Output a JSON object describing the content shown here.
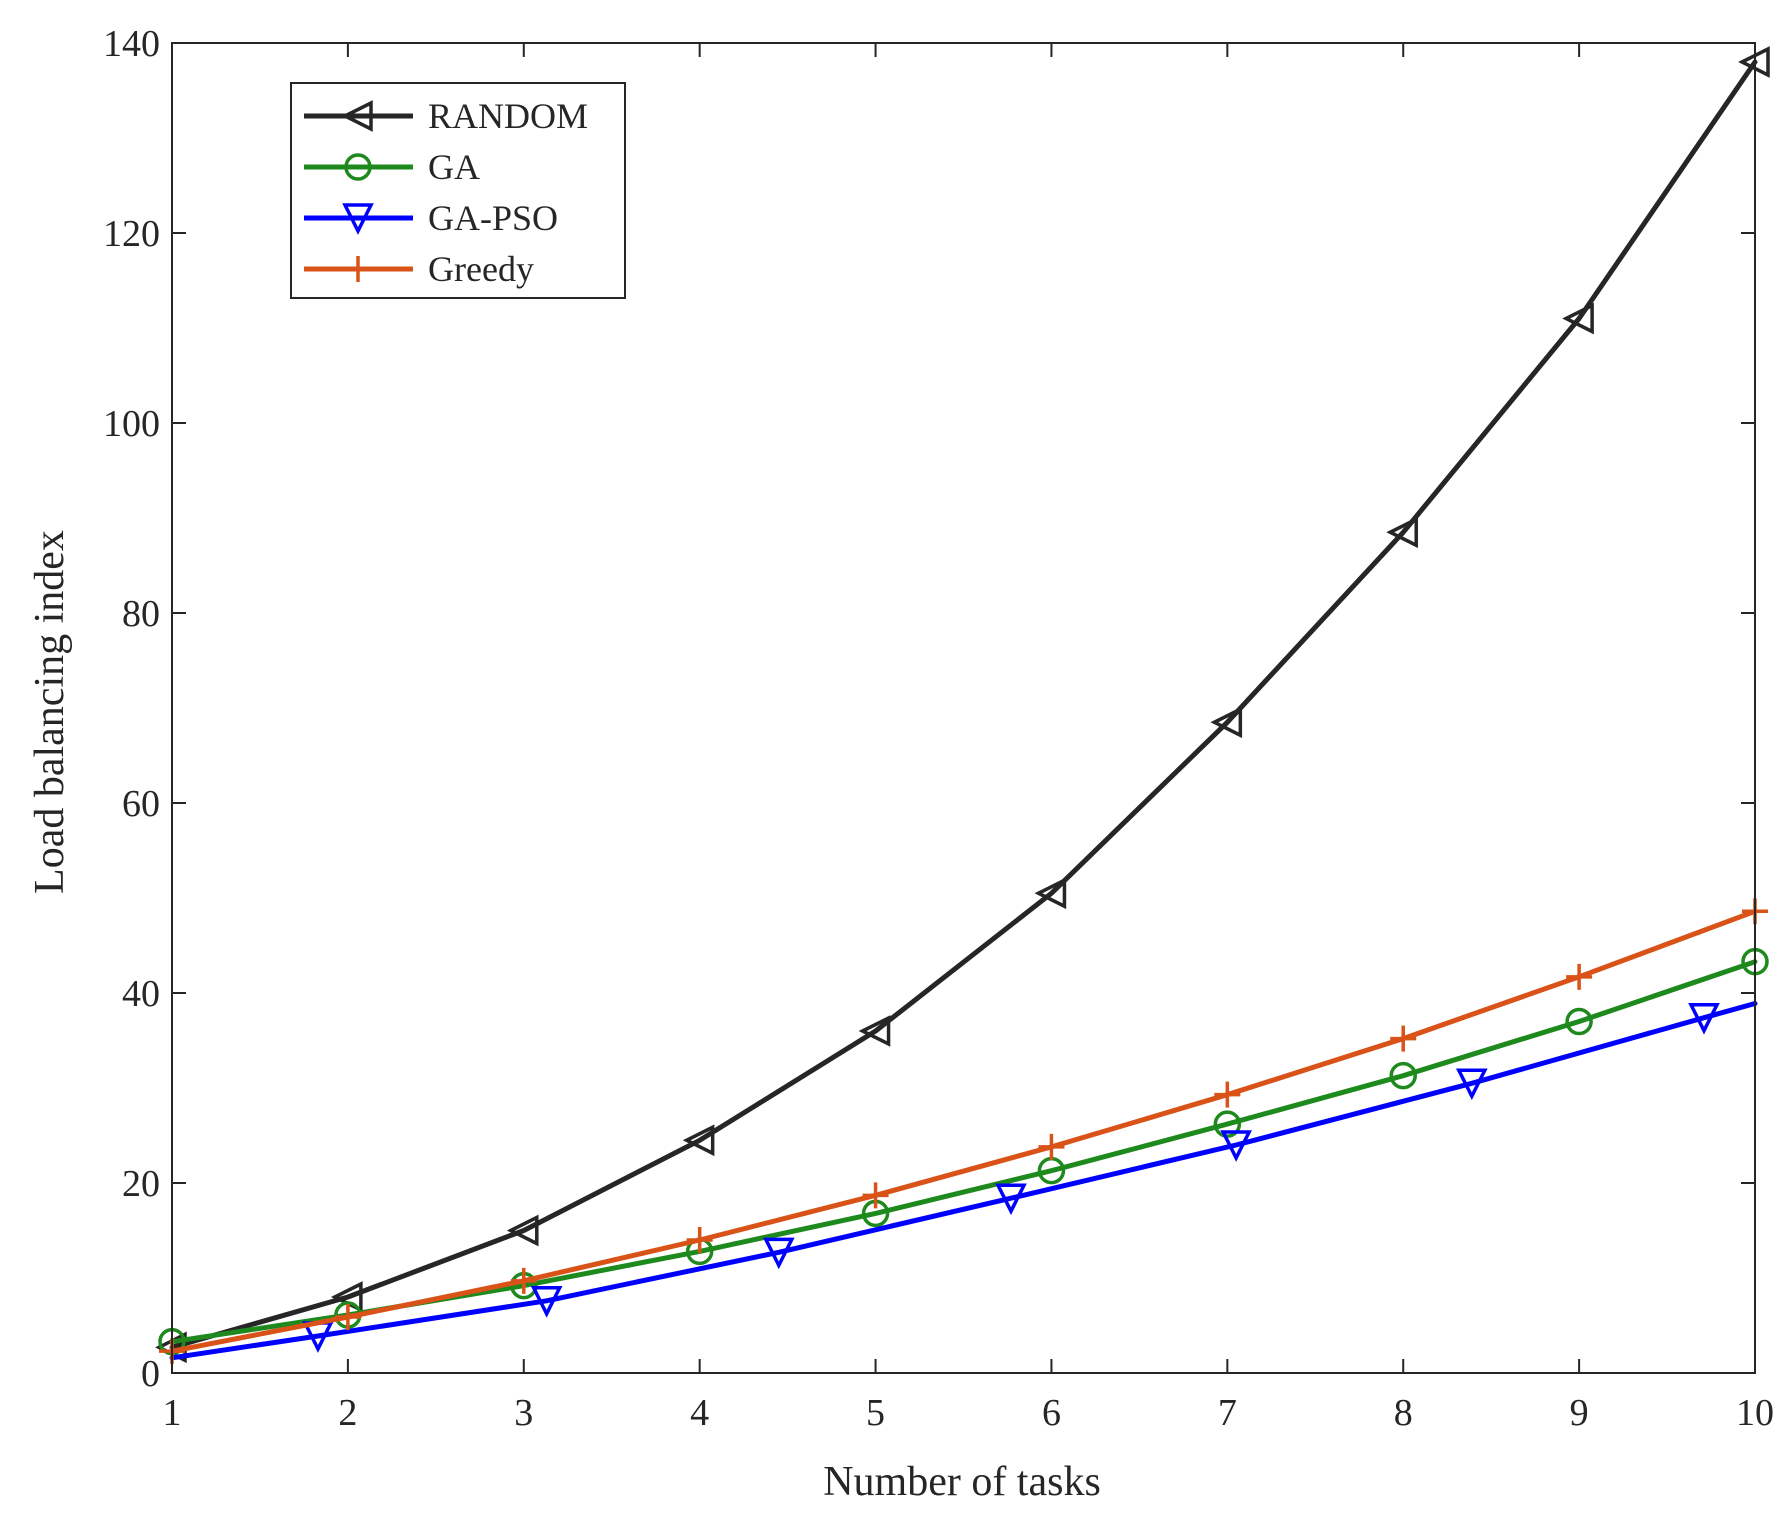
{
  "chart_data": {
    "type": "line",
    "title": "",
    "xlabel": "Number of tasks",
    "ylabel": "Load balancing index",
    "xlim": [
      1,
      10
    ],
    "ylim": [
      0,
      140
    ],
    "xticks": [
      1,
      2,
      3,
      4,
      5,
      6,
      7,
      8,
      9,
      10
    ],
    "yticks": [
      0,
      20,
      40,
      60,
      80,
      100,
      120,
      140
    ],
    "grid": false,
    "legend_position": "top-left",
    "series": [
      {
        "name": "RANDOM",
        "color": "#262626",
        "marker": "triangle-left",
        "x": [
          1,
          2,
          3,
          4,
          5,
          6,
          7,
          8,
          9,
          10
        ],
        "y": [
          2.7,
          8.0,
          15.0,
          24.5,
          36.0,
          50.5,
          68.5,
          88.5,
          111.0,
          138.0
        ]
      },
      {
        "name": "GA",
        "color": "#1e8a1e",
        "marker": "circle",
        "x": [
          1,
          2,
          3,
          4,
          5,
          6,
          7,
          8,
          9,
          10
        ],
        "y": [
          3.3,
          6.1,
          9.2,
          12.8,
          16.8,
          21.3,
          26.2,
          31.3,
          37.0,
          43.3
        ]
      },
      {
        "name": "GA-PSO",
        "color": "#0000ff",
        "marker": "triangle-down",
        "x": [
          1,
          1.83,
          3.13,
          4.45,
          5.77,
          7.05,
          8.39,
          9.71,
          10
        ],
        "y": [
          1.6,
          3.9,
          7.6,
          12.7,
          18.4,
          24.0,
          30.5,
          37.4,
          38.9
        ],
        "marker_indices": [
          1,
          2,
          3,
          4,
          5,
          6,
          7
        ]
      },
      {
        "name": "Greedy",
        "color": "#d95319",
        "marker": "plus",
        "x": [
          1,
          2,
          3,
          4,
          5,
          6,
          7,
          8,
          9,
          10
        ],
        "y": [
          2.3,
          5.9,
          9.7,
          14.0,
          18.7,
          23.8,
          29.3,
          35.2,
          41.7,
          48.6
        ]
      }
    ]
  }
}
